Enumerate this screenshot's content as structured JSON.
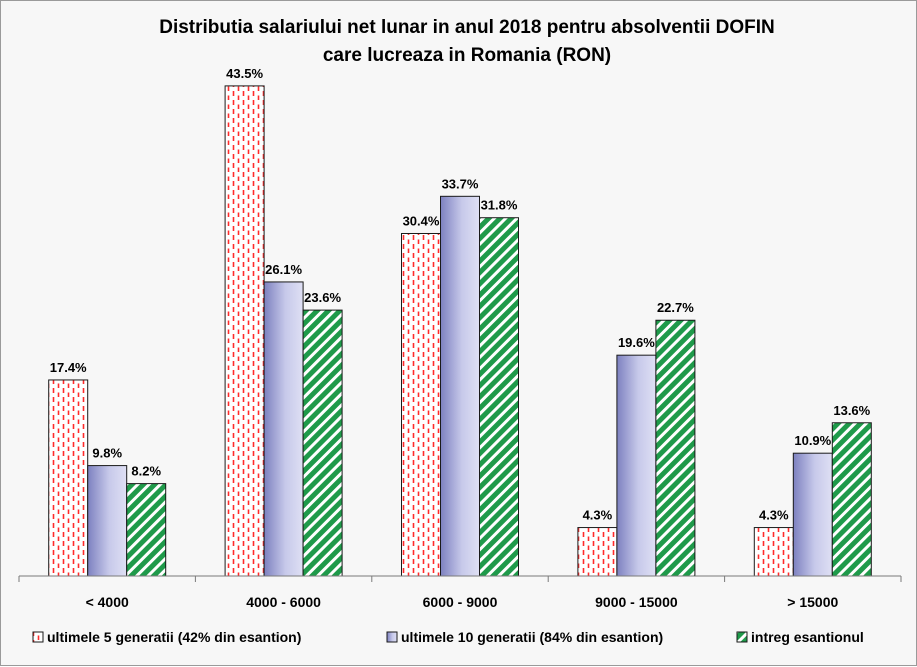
{
  "chart_data": {
    "type": "bar",
    "title": "Distributia salariului net lunar in anul 2018 pentru absolventii DOFIN",
    "subtitle": "care lucreaza in Romania (RON)",
    "categories": [
      "< 4000",
      "4000 - 6000",
      "6000 - 9000",
      "9000 - 15000",
      "> 15000"
    ],
    "series": [
      {
        "name": "ultimele 5 generatii (42% din esantion)",
        "values": [
          17.4,
          43.5,
          30.4,
          4.3,
          4.3
        ],
        "labels": [
          "17.4%",
          "43.5%",
          "30.4%",
          "4.3%",
          "4.3%"
        ],
        "color": "#ff2b2b",
        "pattern": "dashed-vertical"
      },
      {
        "name": "ultimele 10 generatii (84% din esantion)",
        "values": [
          9.8,
          26.1,
          33.7,
          19.6,
          10.9
        ],
        "labels": [
          "9.8%",
          "26.1%",
          "33.7%",
          "19.6%",
          "10.9%"
        ],
        "color": "#8e92c8",
        "pattern": "gradient"
      },
      {
        "name": "intreg esantionul",
        "values": [
          8.2,
          23.6,
          31.8,
          22.7,
          13.6
        ],
        "labels": [
          "8.2%",
          "23.6%",
          "31.8%",
          "22.7%",
          "13.6%"
        ],
        "color": "#1f9a4a",
        "pattern": "diagonal-stripes"
      }
    ],
    "ylim": [
      0,
      45
    ],
    "grid": false,
    "legend": "bottom"
  }
}
